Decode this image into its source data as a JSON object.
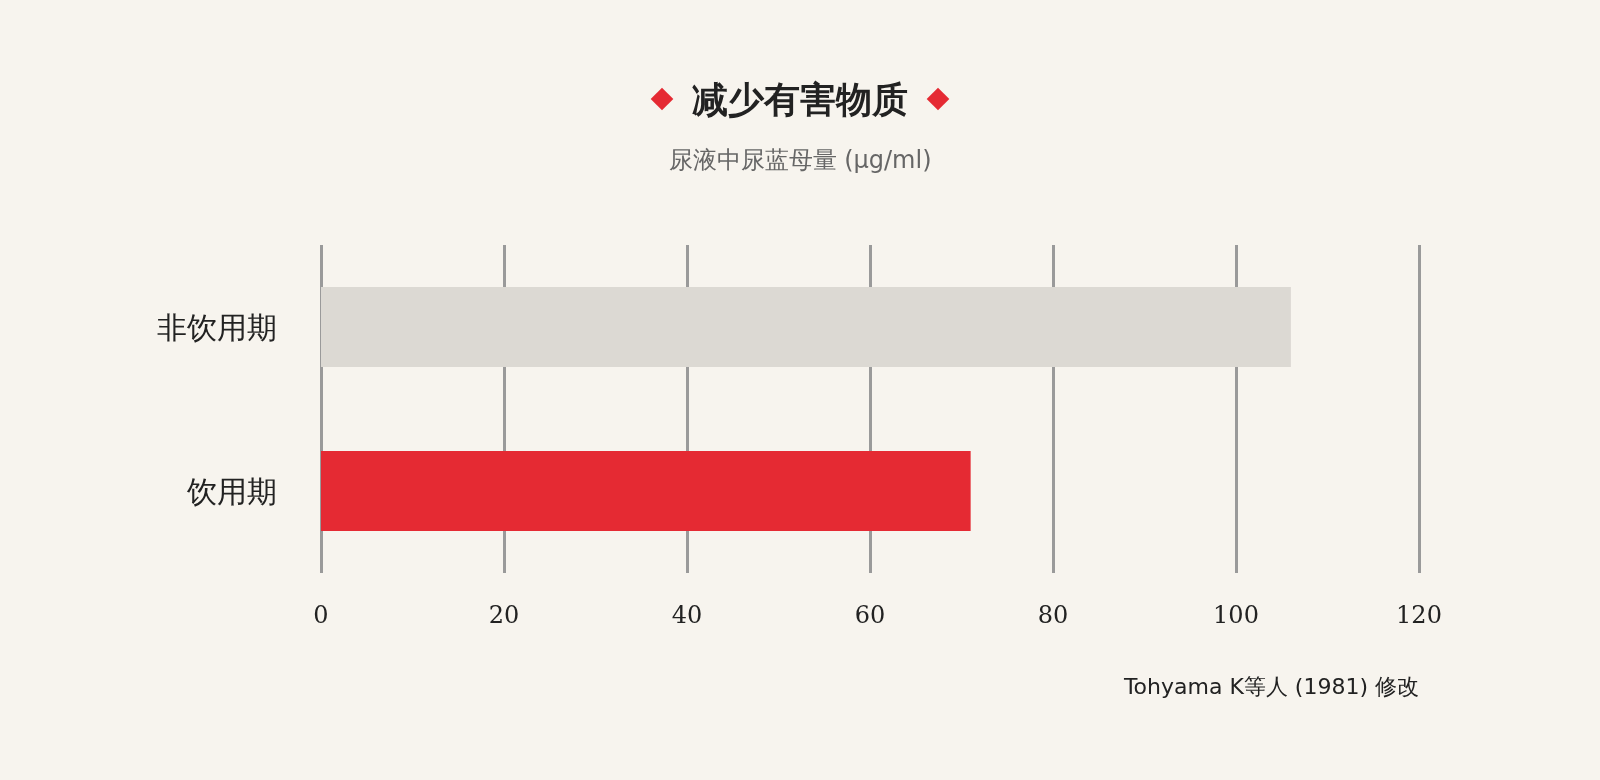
{
  "chart_data": {
    "type": "bar",
    "orientation": "horizontal",
    "title": "减少有害物质",
    "subtitle": "尿液中尿蓝母量 (μg/ml)",
    "categories": [
      "非饮用期",
      "饮用期"
    ],
    "values": [
      106,
      71
    ],
    "colors": [
      "#dcd9d3",
      "#e52a33"
    ],
    "xlim": [
      0,
      120
    ],
    "xticks": [
      0,
      20,
      40,
      60,
      80,
      100,
      120
    ],
    "grid": "x",
    "annotations": [
      "Tohyama K等人 (1981) 修改"
    ]
  }
}
